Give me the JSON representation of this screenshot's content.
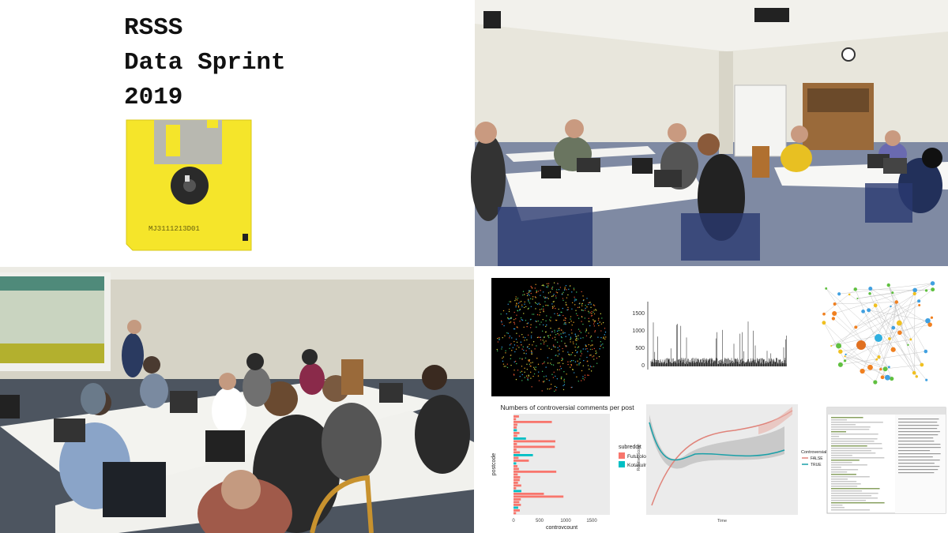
{
  "poster": {
    "title_lines": [
      "RSSS",
      "Data Sprint",
      "2019"
    ],
    "disk_label": "MJ3111213D01"
  },
  "panels": {
    "spike_chart": {
      "yticks": [
        "1500",
        "1000",
        "500",
        "0"
      ]
    },
    "bar_chart": {
      "title": "Numbers of controversial comments per post",
      "y_label": "postcode",
      "x_label": "controvcount",
      "xticks": [
        "0",
        "500",
        "1000",
        "1500"
      ],
      "legend_title": "subreddit",
      "legend": [
        "Futurology",
        "KotakuInAction"
      ]
    },
    "smooth_chart": {
      "x_label": "Time",
      "y_label": "Relative Score",
      "legend_title": "Controversiality",
      "legend": [
        "FALSE",
        "TRUE"
      ]
    }
  }
}
